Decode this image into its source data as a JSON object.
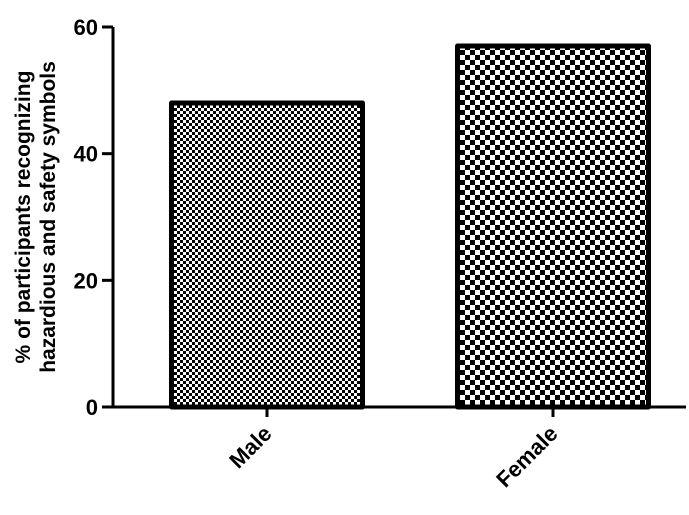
{
  "chart_data": {
    "type": "bar",
    "categories": [
      "Male",
      "Female"
    ],
    "values": [
      48,
      57
    ],
    "title": "",
    "xlabel": "",
    "ylabel_lines": [
      "% of participants recognizing",
      "hazardious and safety symbols"
    ],
    "ylim": [
      0,
      60
    ],
    "yticks": [
      0,
      20,
      40,
      60
    ],
    "grid": false,
    "patterns": [
      "fine-checker",
      "coarse-checker"
    ],
    "colors": {
      "bar_fill": "#000000",
      "bar_bg": "#ffffff",
      "axis": "#000000"
    }
  }
}
